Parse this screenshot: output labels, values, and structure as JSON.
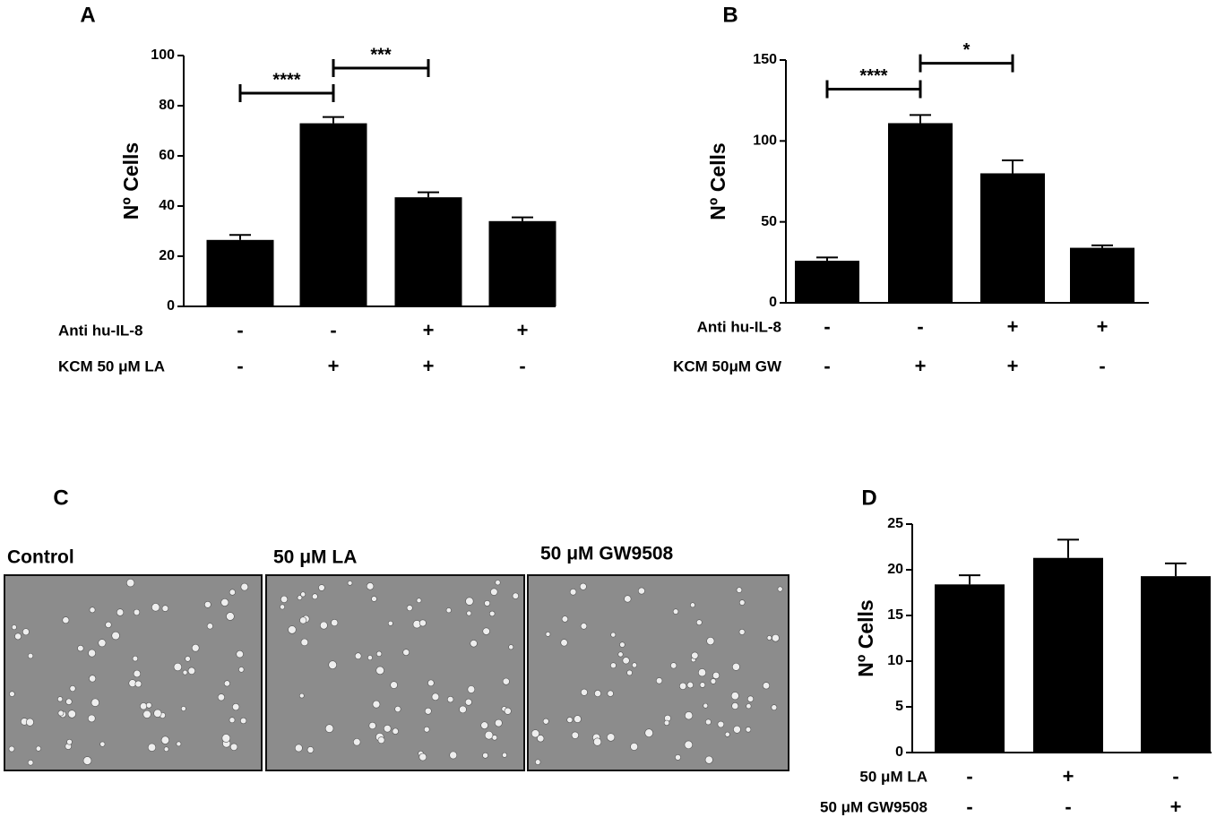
{
  "chart_data": [
    {
      "type": "bar",
      "panel": "A",
      "ylabel": "Nº Cells",
      "values": [
        26.5,
        73,
        43.5,
        34
      ],
      "errors": [
        2,
        2.5,
        2,
        1.5
      ],
      "color": "#000000",
      "ylim": [
        0,
        100
      ],
      "yticks": [
        0,
        20,
        40,
        60,
        80,
        100
      ],
      "conditions": [
        {
          "name": "Anti hu-IL-8",
          "values": [
            "-",
            "-",
            "+",
            "+"
          ]
        },
        {
          "name": "KCM 50 μM LA",
          "values": [
            "-",
            "+",
            "+",
            "-"
          ]
        }
      ],
      "significance": [
        {
          "label": "****",
          "bars": [
            0,
            1
          ],
          "y": 85
        },
        {
          "label": "***",
          "bars": [
            1,
            2
          ],
          "y": 95
        }
      ]
    },
    {
      "type": "bar",
      "panel": "B",
      "ylabel": "Nº Cells",
      "values": [
        26,
        111,
        80,
        34
      ],
      "errors": [
        2,
        5,
        8,
        1.5
      ],
      "color": "#000000",
      "ylim": [
        0,
        150
      ],
      "yticks": [
        0,
        50,
        100,
        150
      ],
      "conditions": [
        {
          "name": "Anti hu-IL-8",
          "values": [
            "-",
            "-",
            "+",
            "+"
          ]
        },
        {
          "name": "KCM 50μM GW",
          "values": [
            "-",
            "+",
            "+",
            "-"
          ]
        }
      ],
      "significance": [
        {
          "label": "****",
          "bars": [
            0,
            1
          ],
          "y": 132
        },
        {
          "label": "*",
          "bars": [
            1,
            2
          ],
          "y": 148
        }
      ]
    },
    {
      "type": "bar",
      "panel": "D",
      "ylabel": "Nº Cells",
      "values": [
        18.4,
        21.3,
        19.3
      ],
      "errors": [
        1,
        2,
        1.4
      ],
      "color": "#000000",
      "ylim": [
        0,
        25
      ],
      "yticks": [
        0,
        5,
        10,
        15,
        20,
        25
      ],
      "conditions": [
        {
          "name": "50 μM LA",
          "values": [
            "-",
            "+",
            "-"
          ]
        },
        {
          "name": "50 μM GW9508",
          "values": [
            "-",
            "-",
            "+"
          ]
        }
      ],
      "significance": []
    }
  ],
  "micrographs": {
    "panel": "C",
    "captions": [
      "Control",
      "50 μM LA",
      "50 μM GW9508"
    ]
  }
}
